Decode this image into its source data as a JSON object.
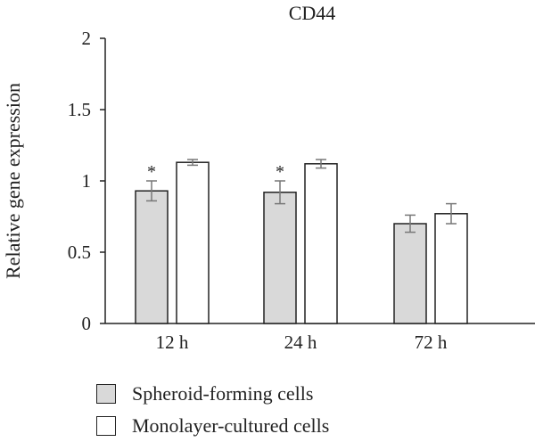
{
  "chart_data": {
    "type": "bar",
    "title": "CD44",
    "xlabel": "",
    "ylabel": "Relative gene expression",
    "categories": [
      "12 h",
      "24 h",
      "72 h"
    ],
    "ylim": [
      0,
      2
    ],
    "yticks": [
      "0",
      "0.5",
      "1",
      "1.5",
      "2"
    ],
    "grid": false,
    "legend_position": "bottom",
    "series": [
      {
        "name": "Spheroid-forming cells",
        "color": "#d9d9d9",
        "values": [
          0.93,
          0.92,
          0.7
        ],
        "errors": [
          0.07,
          0.08,
          0.06
        ],
        "annotations": [
          "*",
          "*",
          ""
        ]
      },
      {
        "name": "Monolayer-cultured cells",
        "color": "#ffffff",
        "values": [
          1.13,
          1.12,
          0.77
        ],
        "errors": [
          0.02,
          0.03,
          0.07
        ],
        "annotations": [
          "",
          "",
          ""
        ]
      }
    ]
  }
}
